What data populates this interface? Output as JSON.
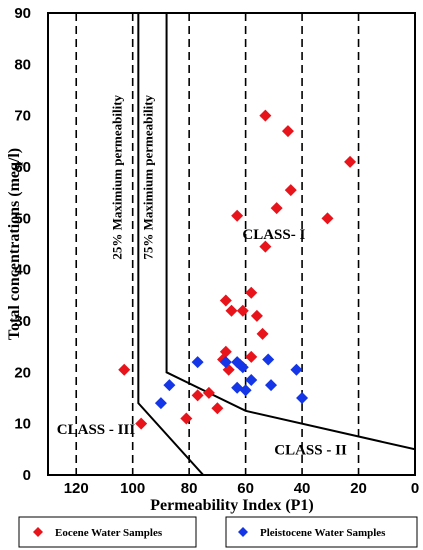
{
  "chart_data": {
    "type": "scatter",
    "xlabel": "Permeability Index (P1)",
    "ylabel": "Total concentrations (meq/l)",
    "xlim": [
      130,
      0
    ],
    "ylim": [
      0,
      90
    ],
    "x_reversed": true,
    "x_ticks": [
      120,
      100,
      80,
      60,
      40,
      20,
      0
    ],
    "y_ticks": [
      0,
      10,
      20,
      30,
      40,
      50,
      60,
      70,
      80,
      90
    ],
    "grid": "vertical dashed lines at x ticks",
    "legend_position": "bottom",
    "boundary_lines": [
      {
        "label": "25% Maximium permeability",
        "points": [
          [
            98,
            90
          ],
          [
            98,
            14
          ],
          [
            75,
            0
          ]
        ]
      },
      {
        "label": "75% Maximium permeability",
        "points": [
          [
            88,
            90
          ],
          [
            88,
            20
          ],
          [
            60,
            12.5
          ],
          [
            0,
            5
          ]
        ]
      }
    ],
    "class_labels": [
      {
        "text": "CLASS - III",
        "x": 113,
        "y": 8
      },
      {
        "text": "CLASS-  I",
        "x": 50,
        "y": 46
      },
      {
        "text": "CLASS - II",
        "x": 37,
        "y": 4
      }
    ],
    "series": [
      {
        "name": "Eocene Water Samples",
        "color": "#e8141c",
        "marker": "diamond",
        "points": [
          [
            53,
            70
          ],
          [
            45,
            67
          ],
          [
            23,
            61
          ],
          [
            44,
            55.5
          ],
          [
            49,
            52
          ],
          [
            63,
            50.5
          ],
          [
            31,
            50
          ],
          [
            53,
            44.5
          ],
          [
            58,
            35.5
          ],
          [
            67,
            34
          ],
          [
            65,
            32
          ],
          [
            61,
            32
          ],
          [
            56,
            31
          ],
          [
            54,
            27.5
          ],
          [
            67,
            24
          ],
          [
            58,
            23
          ],
          [
            68,
            22.5
          ],
          [
            62,
            21.5
          ],
          [
            66,
            20.5
          ],
          [
            103,
            20.5
          ],
          [
            73,
            16
          ],
          [
            77,
            15.5
          ],
          [
            70,
            13
          ],
          [
            81,
            11
          ],
          [
            97,
            10
          ]
        ]
      },
      {
        "name": "Pleistocene Water Samples",
        "color": "#1436e6",
        "marker": "diamond",
        "points": [
          [
            77,
            22
          ],
          [
            63,
            22
          ],
          [
            52,
            22.5
          ],
          [
            42,
            20.5
          ],
          [
            58,
            18.5
          ],
          [
            87,
            17.5
          ],
          [
            63,
            17
          ],
          [
            60,
            16.5
          ],
          [
            51,
            17.5
          ],
          [
            40,
            15
          ],
          [
            90,
            14
          ],
          [
            67,
            22
          ],
          [
            61,
            21
          ]
        ]
      }
    ]
  }
}
